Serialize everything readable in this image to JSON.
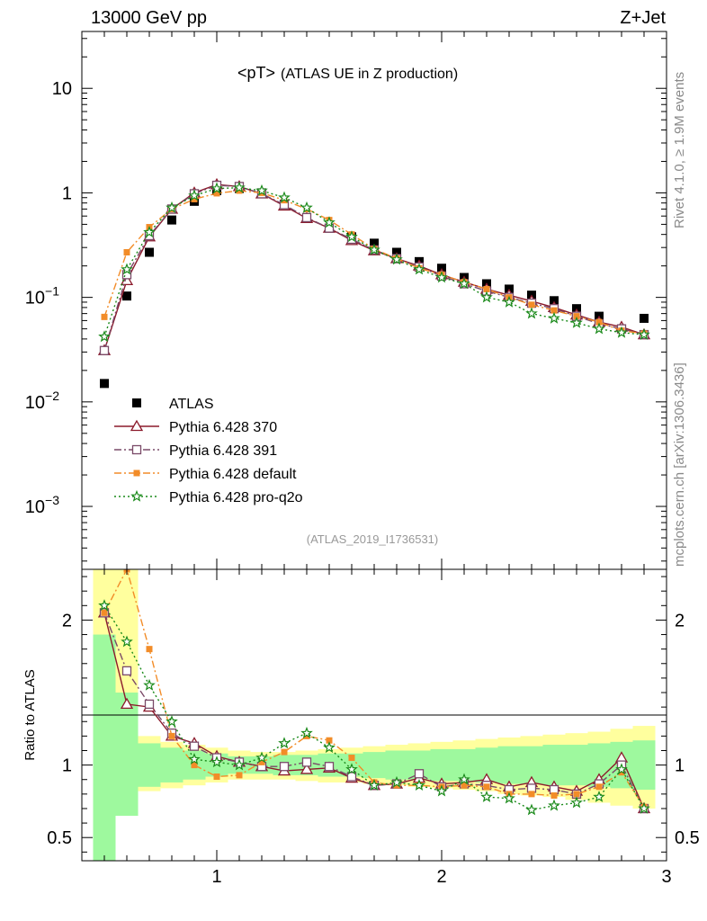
{
  "header": {
    "left": "13000 GeV pp",
    "right": "Z+Jet"
  },
  "side_text": {
    "rivet": "Rivet 4.1.0, ≥ 1.9M events",
    "mcplots": "mcplots.cern.ch [arXiv:1306.3436]"
  },
  "chart_data": [
    {
      "type": "scatter",
      "panel": "main",
      "title_main": "<pT>",
      "title_sub": "(ATLAS UE in Z production)",
      "analysis_tag": "(ATLAS_2019_I1736531)",
      "yscale": "log",
      "ylim": [
        0.00025,
        35
      ],
      "xlim": [
        0.4,
        3.0
      ],
      "ytick_labels": [
        {
          "value": 10,
          "label": "10"
        },
        {
          "value": 1,
          "label": "1"
        },
        {
          "value": 0.1,
          "label": "10",
          "exp": "−1"
        },
        {
          "value": 0.01,
          "label": "10",
          "exp": "−2"
        },
        {
          "value": 0.001,
          "label": "10",
          "exp": "−3"
        }
      ],
      "legend_position": "lower-left",
      "x": [
        0.5,
        0.6,
        0.7,
        0.8,
        0.9,
        1.0,
        1.1,
        1.2,
        1.3,
        1.4,
        1.5,
        1.6,
        1.7,
        1.8,
        1.9,
        2.0,
        2.1,
        2.2,
        2.3,
        2.4,
        2.5,
        2.6,
        2.7,
        2.8,
        2.9
      ],
      "series": [
        {
          "name": "ATLAS",
          "color": "#000000",
          "marker": "square",
          "line": "none",
          "values": [
            0.015,
            0.103,
            0.27,
            0.55,
            0.83,
            1.05,
            1.1,
            1.0,
            0.78,
            0.58,
            0.46,
            0.38,
            0.33,
            0.27,
            0.22,
            0.19,
            0.155,
            0.135,
            0.12,
            0.105,
            0.093,
            0.078,
            0.066,
            0.05,
            0.063
          ]
        },
        {
          "name": "Pythia 6.428 370",
          "color": "#8b1a2b",
          "marker": "triangle-open",
          "line": "solid",
          "values": [
            0.031,
            0.145,
            0.38,
            0.7,
            1.0,
            1.2,
            1.15,
            0.98,
            0.75,
            0.57,
            0.46,
            0.35,
            0.28,
            0.235,
            0.2,
            0.165,
            0.14,
            0.12,
            0.105,
            0.092,
            0.08,
            0.068,
            0.058,
            0.052,
            0.044
          ]
        },
        {
          "name": "Pythia 6.428 391",
          "color": "#7a4a68",
          "marker": "square-open",
          "line": "dashdot",
          "values": [
            0.031,
            0.165,
            0.39,
            0.7,
            0.98,
            1.18,
            1.15,
            0.98,
            0.77,
            0.58,
            0.46,
            0.36,
            0.285,
            0.235,
            0.195,
            0.16,
            0.135,
            0.115,
            0.1,
            0.088,
            0.078,
            0.066,
            0.056,
            0.05,
            0.044
          ]
        },
        {
          "name": "Pythia 6.428 default",
          "color": "#f28c28",
          "marker": "square-filled",
          "line": "dashdot",
          "values": [
            0.065,
            0.27,
            0.47,
            0.7,
            0.87,
            0.99,
            1.05,
            1.0,
            0.85,
            0.7,
            0.55,
            0.4,
            0.29,
            0.235,
            0.19,
            0.165,
            0.14,
            0.12,
            0.1,
            0.085,
            0.075,
            0.066,
            0.058,
            0.048,
            0.045
          ]
        },
        {
          "name": "Pythia 6.428 pro-q2o",
          "color": "#1a8a1a",
          "marker": "star",
          "line": "dotted",
          "values": [
            0.042,
            0.185,
            0.42,
            0.72,
            0.94,
            1.1,
            1.12,
            1.05,
            0.9,
            0.72,
            0.52,
            0.38,
            0.285,
            0.23,
            0.185,
            0.155,
            0.135,
            0.1,
            0.09,
            0.07,
            0.063,
            0.057,
            0.05,
            0.046,
            0.044
          ]
        }
      ]
    },
    {
      "type": "scatter",
      "panel": "ratio",
      "ylabel": "Ratio to ATLAS",
      "ylim": [
        0.34,
        2.35
      ],
      "xlim": [
        0.4,
        3.0
      ],
      "xtick_labels": [
        {
          "value": 1,
          "label": "1"
        },
        {
          "value": 2,
          "label": "2"
        },
        {
          "value": 3,
          "label": "3"
        }
      ],
      "ytick_labels": [
        {
          "value": 2,
          "label": "2"
        },
        {
          "value": 1,
          "label": "1"
        },
        {
          "value": 0.5,
          "label": "0.5"
        }
      ],
      "bands": {
        "x_edges": [
          0.45,
          0.55,
          0.65,
          0.75,
          0.85,
          0.95,
          1.05,
          1.15,
          1.25,
          1.35,
          1.45,
          1.55,
          1.65,
          1.75,
          1.85,
          1.95,
          2.05,
          2.15,
          2.25,
          2.35,
          2.45,
          2.55,
          2.65,
          2.75,
          2.85,
          2.95
        ],
        "green_color": "#9ef99e",
        "yellow_color": "#ffff9e",
        "green_lo": [
          0.3,
          0.65,
          0.85,
          0.88,
          0.9,
          0.92,
          0.94,
          0.94,
          0.93,
          0.93,
          0.92,
          0.92,
          0.91,
          0.9,
          0.9,
          0.89,
          0.89,
          0.88,
          0.87,
          0.87,
          0.86,
          0.86,
          0.85,
          0.84,
          0.83
        ],
        "green_hi": [
          1.9,
          1.5,
          1.15,
          1.12,
          1.1,
          1.08,
          1.06,
          1.06,
          1.07,
          1.07,
          1.08,
          1.08,
          1.09,
          1.1,
          1.1,
          1.11,
          1.11,
          1.12,
          1.13,
          1.13,
          1.14,
          1.14,
          1.15,
          1.16,
          1.17
        ],
        "yellow_lo": [
          0.3,
          0.7,
          0.82,
          0.84,
          0.86,
          0.88,
          0.9,
          0.9,
          0.9,
          0.89,
          0.88,
          0.88,
          0.87,
          0.86,
          0.85,
          0.84,
          0.83,
          0.82,
          0.8,
          0.79,
          0.78,
          0.76,
          0.74,
          0.72,
          0.7
        ],
        "yellow_hi": [
          2.35,
          2.35,
          1.2,
          1.16,
          1.14,
          1.12,
          1.1,
          1.09,
          1.09,
          1.1,
          1.11,
          1.12,
          1.13,
          1.14,
          1.15,
          1.16,
          1.17,
          1.18,
          1.19,
          1.2,
          1.21,
          1.22,
          1.23,
          1.25,
          1.27
        ]
      },
      "series": [
        {
          "name": "Pythia 6.428 370",
          "color": "#8b1a2b",
          "marker": "triangle-open",
          "line": "solid",
          "values": [
            2.05,
            1.42,
            1.4,
            1.2,
            1.15,
            1.06,
            1.02,
            0.99,
            0.96,
            0.97,
            0.98,
            0.91,
            0.86,
            0.87,
            0.91,
            0.87,
            0.88,
            0.9,
            0.85,
            0.88,
            0.85,
            0.82,
            0.9,
            1.05,
            0.7
          ]
        },
        {
          "name": "Pythia 6.428 391",
          "color": "#7a4a68",
          "marker": "square-open",
          "line": "dashdot",
          "values": [
            2.05,
            1.65,
            1.42,
            1.22,
            1.13,
            1.05,
            1.02,
            0.99,
            0.99,
            1.02,
            0.99,
            0.92,
            0.86,
            0.87,
            0.94,
            0.85,
            0.87,
            0.86,
            0.83,
            0.84,
            0.83,
            0.8,
            0.87,
            1.0,
            0.7
          ]
        },
        {
          "name": "Pythia 6.428 default",
          "color": "#f28c28",
          "marker": "square-filled",
          "line": "dashdot",
          "values": [
            2.05,
            2.35,
            1.8,
            1.2,
            1.0,
            0.92,
            0.93,
            1.02,
            1.09,
            1.2,
            1.17,
            1.05,
            0.88,
            0.86,
            0.86,
            0.85,
            0.86,
            0.85,
            0.8,
            0.8,
            0.79,
            0.8,
            0.85,
            0.95,
            0.71
          ]
        },
        {
          "name": "Pythia 6.428 pro-q2o",
          "color": "#1a8a1a",
          "marker": "star",
          "line": "dotted",
          "values": [
            2.1,
            1.85,
            1.55,
            1.3,
            1.04,
            1.02,
            1.0,
            1.05,
            1.15,
            1.22,
            1.12,
            0.97,
            0.86,
            0.88,
            0.86,
            0.82,
            0.9,
            0.78,
            0.77,
            0.69,
            0.72,
            0.74,
            0.78,
            0.97,
            0.7
          ]
        }
      ]
    }
  ]
}
